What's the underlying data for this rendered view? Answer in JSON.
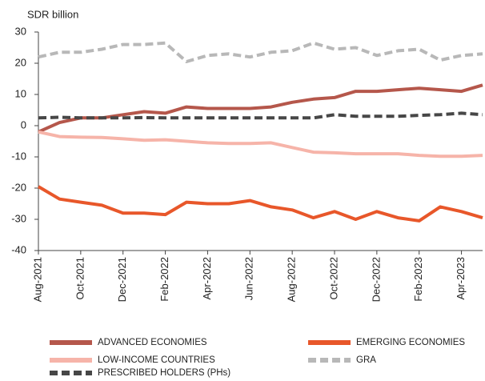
{
  "chart_data": {
    "type": "line",
    "y_axis_label": "SDR billion",
    "categories": [
      "Aug-2021",
      null,
      "Oct-2021",
      null,
      "Dec-2021",
      null,
      "Feb-2022",
      null,
      "Apr-2022",
      null,
      "Jun-2022",
      null,
      "Aug-2022",
      null,
      "Oct-2022",
      null,
      "Dec-2022",
      null,
      "Feb-2023",
      null,
      "Apr-2023",
      null
    ],
    "series": [
      {
        "name": "ADVANCED ECONOMIES",
        "color": "#b5574b",
        "dash": false,
        "values": [
          -2,
          1,
          2.5,
          2.5,
          3.5,
          4.5,
          4,
          6,
          5.5,
          5.5,
          5.5,
          6,
          7.5,
          8.5,
          9,
          11,
          11,
          11.5,
          12,
          11.5,
          11,
          13
        ]
      },
      {
        "name": "EMERGING ECONOMIES",
        "color": "#e8572a",
        "dash": false,
        "values": [
          -19.5,
          -23.5,
          -24.5,
          -25.5,
          -28,
          -28,
          -28.5,
          -24.5,
          -25,
          -25,
          -24,
          -26,
          -27,
          -29.5,
          -27.5,
          -30,
          -27.5,
          -29.5,
          -30.5,
          -26,
          -27.5,
          -29.5
        ]
      },
      {
        "name": "LOW-INCOME COUNTRIES",
        "color": "#f6b4a9",
        "dash": false,
        "values": [
          -2,
          -3.5,
          -3.7,
          -3.8,
          -4.2,
          -4.7,
          -4.5,
          -5,
          -5.5,
          -5.7,
          -5.7,
          -5.5,
          -7,
          -8.5,
          -8.7,
          -9,
          -9,
          -9,
          -9.5,
          -9.8,
          -9.8,
          -9.5
        ]
      },
      {
        "name": "GRA",
        "color": "#b8b8b8",
        "dash": true,
        "values": [
          22,
          23.5,
          23.5,
          24.5,
          26,
          26,
          26.5,
          20.5,
          22.5,
          23,
          22,
          23.5,
          24,
          26.5,
          24.5,
          25,
          22.5,
          24,
          24.5,
          21,
          22.5,
          23
        ]
      },
      {
        "name": "PRESCRIBED HOLDERS (PHs)",
        "color": "#474747",
        "dash": true,
        "values": [
          2.5,
          2.7,
          2.5,
          2.5,
          2.5,
          2.6,
          2.5,
          2.5,
          2.5,
          2.5,
          2.5,
          2.5,
          2.5,
          2.5,
          3.5,
          3,
          3,
          3,
          3.3,
          3.5,
          4,
          3.5
        ]
      }
    ],
    "ylim": [
      -40,
      30
    ],
    "yticks": [
      -40,
      -30,
      -20,
      -10,
      0,
      10,
      20,
      30
    ],
    "grid": false
  }
}
